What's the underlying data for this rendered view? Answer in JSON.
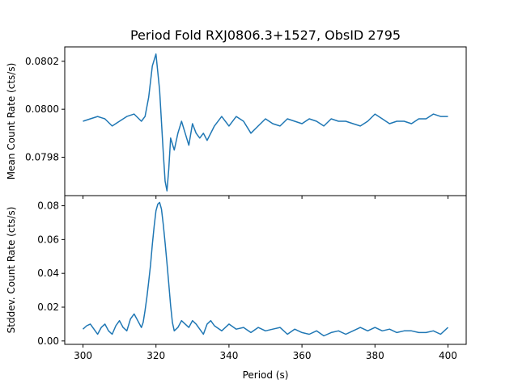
{
  "chart_data": {
    "type": "line",
    "title": "Period Fold RXJ0806.3+1527, ObsID 2795",
    "xlabel": "Period (s)",
    "xlim": [
      295,
      405
    ],
    "xticks": [
      "300",
      "320",
      "340",
      "360",
      "380",
      "400"
    ],
    "xtick_values": [
      300,
      320,
      340,
      360,
      380,
      400
    ],
    "color": "#1f77b4",
    "grid": false,
    "panels": [
      {
        "ylabel": "Mean Count Rate (cts/s)",
        "ylim": [
          0.07964,
          0.08026
        ],
        "yticks": [
          "0.0798",
          "0.0800",
          "0.0802"
        ],
        "ytick_values": [
          0.0798,
          0.08,
          0.0802
        ],
        "series": {
          "x": [
            300,
            302,
            304,
            306,
            308,
            310,
            312,
            314,
            316,
            317,
            318,
            319,
            320,
            321,
            322,
            322.5,
            323,
            323.5,
            324,
            325,
            326,
            327,
            328,
            329,
            330,
            331,
            332,
            333,
            334,
            336,
            338,
            340,
            342,
            344,
            346,
            348,
            350,
            352,
            354,
            356,
            358,
            360,
            362,
            364,
            366,
            368,
            370,
            372,
            374,
            376,
            378,
            380,
            382,
            384,
            386,
            388,
            390,
            392,
            394,
            396,
            398,
            400
          ],
          "y": [
            0.07995,
            0.07996,
            0.07997,
            0.07996,
            0.07993,
            0.07995,
            0.07997,
            0.07998,
            0.07995,
            0.07997,
            0.08005,
            0.08018,
            0.08023,
            0.08008,
            0.07982,
            0.0797,
            0.07966,
            0.07975,
            0.07988,
            0.07983,
            0.0799,
            0.07995,
            0.0799,
            0.07985,
            0.07994,
            0.0799,
            0.07988,
            0.0799,
            0.07987,
            0.07993,
            0.07997,
            0.07993,
            0.07997,
            0.07995,
            0.0799,
            0.07993,
            0.07996,
            0.07994,
            0.07993,
            0.07996,
            0.07995,
            0.07994,
            0.07996,
            0.07995,
            0.07993,
            0.07996,
            0.07995,
            0.07995,
            0.07994,
            0.07993,
            0.07995,
            0.07998,
            0.07996,
            0.07994,
            0.07995,
            0.07995,
            0.07994,
            0.07996,
            0.07996,
            0.07998,
            0.07997,
            0.07997
          ]
        }
      },
      {
        "ylabel": "Stddev. Count Rate (cts/s)",
        "ylim": [
          -0.002,
          0.086
        ],
        "yticks": [
          "0.00",
          "0.02",
          "0.04",
          "0.06",
          "0.08"
        ],
        "ytick_values": [
          0,
          0.02,
          0.04,
          0.06,
          0.08
        ],
        "series": {
          "x": [
            300,
            301,
            302,
            303,
            304,
            305,
            306,
            307,
            308,
            309,
            310,
            311,
            312,
            313,
            314,
            315,
            316,
            316.5,
            317,
            317.5,
            318,
            318.5,
            319,
            319.5,
            320,
            320.5,
            321,
            321.5,
            322,
            322.5,
            323,
            323.5,
            324,
            324.5,
            325,
            326,
            327,
            328,
            329,
            330,
            331,
            332,
            333,
            334,
            335,
            336,
            338,
            340,
            342,
            344,
            346,
            348,
            350,
            352,
            354,
            356,
            358,
            360,
            362,
            364,
            366,
            368,
            370,
            372,
            374,
            376,
            378,
            380,
            382,
            384,
            386,
            388,
            390,
            392,
            394,
            396,
            398,
            400
          ],
          "y": [
            0.007,
            0.009,
            0.01,
            0.007,
            0.004,
            0.008,
            0.01,
            0.006,
            0.004,
            0.009,
            0.012,
            0.008,
            0.006,
            0.013,
            0.016,
            0.012,
            0.008,
            0.011,
            0.018,
            0.026,
            0.035,
            0.045,
            0.057,
            0.068,
            0.077,
            0.081,
            0.082,
            0.078,
            0.069,
            0.058,
            0.046,
            0.034,
            0.021,
            0.011,
            0.006,
            0.008,
            0.012,
            0.01,
            0.008,
            0.012,
            0.01,
            0.007,
            0.004,
            0.01,
            0.012,
            0.009,
            0.006,
            0.01,
            0.007,
            0.008,
            0.005,
            0.008,
            0.006,
            0.007,
            0.008,
            0.004,
            0.007,
            0.005,
            0.004,
            0.006,
            0.003,
            0.005,
            0.006,
            0.004,
            0.006,
            0.008,
            0.006,
            0.008,
            0.006,
            0.007,
            0.005,
            0.006,
            0.006,
            0.005,
            0.005,
            0.006,
            0.004,
            0.008
          ]
        }
      }
    ]
  }
}
